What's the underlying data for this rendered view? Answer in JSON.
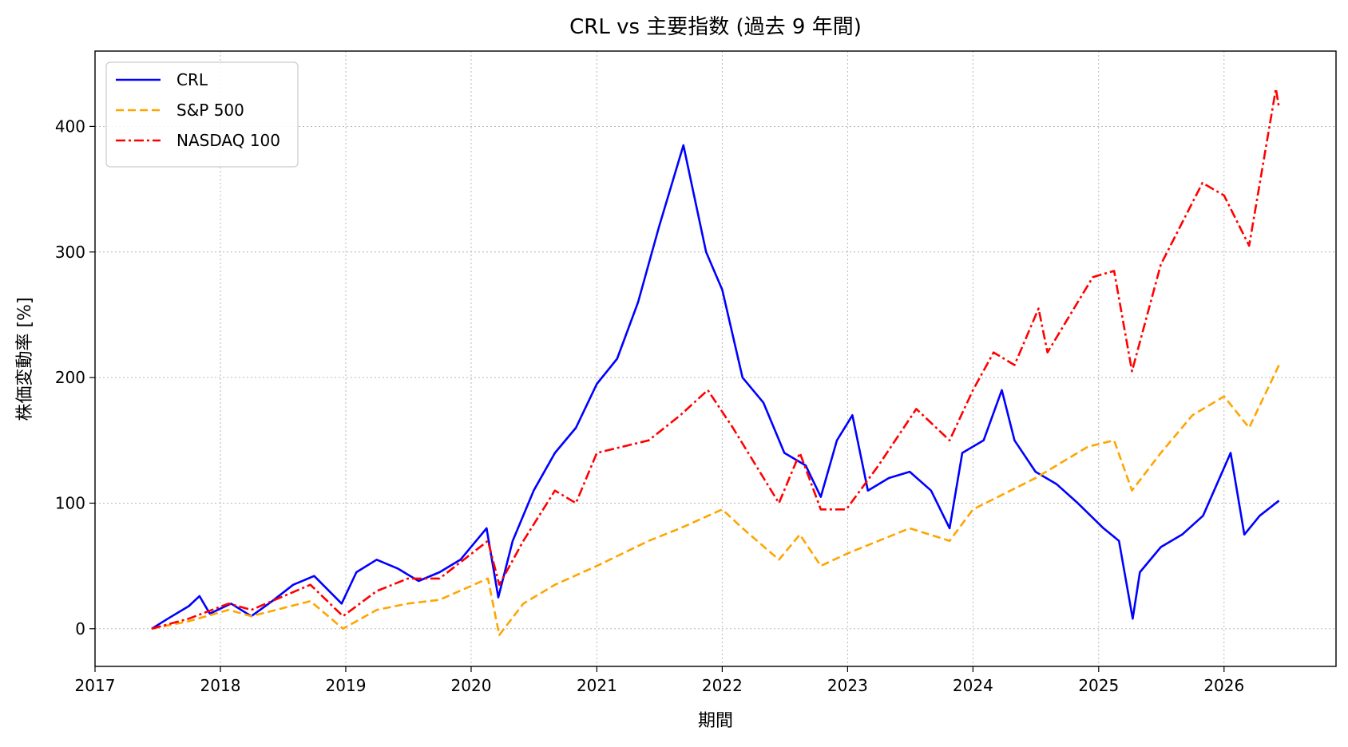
{
  "chart_data": {
    "type": "line",
    "title": "CRL vs 主要指数 (過去 9 年間)",
    "xlabel": "期間",
    "ylabel": "株価変動率 [%]",
    "xlim": [
      "2017-01-01",
      "2026-11-23"
    ],
    "ylim": [
      -30,
      460
    ],
    "xticks": [
      "2017",
      "2018",
      "2019",
      "2020",
      "2021",
      "2022",
      "2023",
      "2024",
      "2025",
      "2026"
    ],
    "yticks": [
      0,
      100,
      200,
      300,
      400
    ],
    "grid": true,
    "legend_position": "top-left",
    "series": [
      {
        "name": "CRL",
        "color": "#0000ff",
        "dash": "solid",
        "points": [
          [
            "2017-06-15",
            0
          ],
          [
            "2017-08-01",
            8
          ],
          [
            "2017-10-01",
            18
          ],
          [
            "2017-11-01",
            26
          ],
          [
            "2017-12-01",
            12
          ],
          [
            "2018-02-01",
            20
          ],
          [
            "2018-04-01",
            10
          ],
          [
            "2018-06-01",
            22
          ],
          [
            "2018-08-01",
            35
          ],
          [
            "2018-10-01",
            42
          ],
          [
            "2018-12-20",
            20
          ],
          [
            "2019-02-01",
            45
          ],
          [
            "2019-04-01",
            55
          ],
          [
            "2019-06-01",
            48
          ],
          [
            "2019-08-01",
            38
          ],
          [
            "2019-10-01",
            45
          ],
          [
            "2019-12-01",
            55
          ],
          [
            "2020-02-15",
            80
          ],
          [
            "2020-03-20",
            25
          ],
          [
            "2020-05-01",
            70
          ],
          [
            "2020-07-01",
            110
          ],
          [
            "2020-09-01",
            140
          ],
          [
            "2020-11-01",
            160
          ],
          [
            "2021-01-01",
            195
          ],
          [
            "2021-03-01",
            215
          ],
          [
            "2021-05-01",
            260
          ],
          [
            "2021-07-01",
            320
          ],
          [
            "2021-09-10",
            385
          ],
          [
            "2021-10-15",
            340
          ],
          [
            "2021-11-15",
            300
          ],
          [
            "2022-01-01",
            270
          ],
          [
            "2022-03-01",
            200
          ],
          [
            "2022-05-01",
            180
          ],
          [
            "2022-07-01",
            140
          ],
          [
            "2022-09-01",
            130
          ],
          [
            "2022-10-15",
            105
          ],
          [
            "2022-12-01",
            150
          ],
          [
            "2023-01-15",
            170
          ],
          [
            "2023-03-01",
            110
          ],
          [
            "2023-05-01",
            120
          ],
          [
            "2023-07-01",
            125
          ],
          [
            "2023-09-01",
            110
          ],
          [
            "2023-10-25",
            80
          ],
          [
            "2023-12-01",
            140
          ],
          [
            "2024-02-01",
            150
          ],
          [
            "2024-03-25",
            190
          ],
          [
            "2024-05-01",
            150
          ],
          [
            "2024-07-01",
            125
          ],
          [
            "2024-09-01",
            115
          ],
          [
            "2024-11-01",
            100
          ],
          [
            "2025-01-15",
            80
          ],
          [
            "2025-03-01",
            70
          ],
          [
            "2025-04-10",
            8
          ],
          [
            "2025-05-01",
            45
          ],
          [
            "2025-07-01",
            65
          ],
          [
            "2025-09-01",
            75
          ],
          [
            "2025-11-01",
            90
          ],
          [
            "2026-01-20",
            140
          ],
          [
            "2026-03-01",
            75
          ],
          [
            "2026-04-15",
            90
          ],
          [
            "2026-06-10",
            102
          ]
        ]
      },
      {
        "name": "S&P 500",
        "color": "#ffa500",
        "dash": "dashed",
        "points": [
          [
            "2017-06-15",
            0
          ],
          [
            "2017-10-01",
            6
          ],
          [
            "2018-01-25",
            15
          ],
          [
            "2018-04-01",
            10
          ],
          [
            "2018-09-20",
            22
          ],
          [
            "2018-12-24",
            0
          ],
          [
            "2019-04-01",
            15
          ],
          [
            "2019-07-01",
            20
          ],
          [
            "2019-10-01",
            23
          ],
          [
            "2020-02-19",
            40
          ],
          [
            "2020-03-23",
            -5
          ],
          [
            "2020-06-01",
            20
          ],
          [
            "2020-09-01",
            35
          ],
          [
            "2021-01-01",
            50
          ],
          [
            "2021-06-01",
            70
          ],
          [
            "2021-09-01",
            80
          ],
          [
            "2022-01-01",
            95
          ],
          [
            "2022-03-01",
            80
          ],
          [
            "2022-06-15",
            55
          ],
          [
            "2022-08-15",
            75
          ],
          [
            "2022-10-15",
            50
          ],
          [
            "2023-01-01",
            60
          ],
          [
            "2023-07-01",
            80
          ],
          [
            "2023-10-25",
            70
          ],
          [
            "2024-01-01",
            95
          ],
          [
            "2024-07-01",
            120
          ],
          [
            "2024-12-01",
            145
          ],
          [
            "2025-02-15",
            150
          ],
          [
            "2025-04-08",
            110
          ],
          [
            "2025-07-01",
            140
          ],
          [
            "2025-10-01",
            170
          ],
          [
            "2026-01-01",
            185
          ],
          [
            "2026-03-15",
            160
          ],
          [
            "2026-06-10",
            210
          ]
        ]
      },
      {
        "name": "NASDAQ 100",
        "color": "#ff0000",
        "dash": "dashdot",
        "points": [
          [
            "2017-06-15",
            0
          ],
          [
            "2017-10-01",
            8
          ],
          [
            "2018-01-25",
            20
          ],
          [
            "2018-04-01",
            15
          ],
          [
            "2018-09-20",
            35
          ],
          [
            "2018-12-24",
            10
          ],
          [
            "2019-04-01",
            30
          ],
          [
            "2019-07-01",
            40
          ],
          [
            "2019-10-01",
            40
          ],
          [
            "2020-02-19",
            70
          ],
          [
            "2020-03-23",
            35
          ],
          [
            "2020-06-01",
            70
          ],
          [
            "2020-09-01",
            110
          ],
          [
            "2020-11-01",
            100
          ],
          [
            "2021-01-01",
            140
          ],
          [
            "2021-06-01",
            150
          ],
          [
            "2021-09-01",
            170
          ],
          [
            "2021-11-20",
            190
          ],
          [
            "2022-02-01",
            160
          ],
          [
            "2022-06-15",
            100
          ],
          [
            "2022-08-15",
            140
          ],
          [
            "2022-10-15",
            95
          ],
          [
            "2022-12-28",
            95
          ],
          [
            "2023-04-01",
            130
          ],
          [
            "2023-07-20",
            175
          ],
          [
            "2023-10-25",
            150
          ],
          [
            "2024-01-01",
            190
          ],
          [
            "2024-03-01",
            220
          ],
          [
            "2024-05-01",
            210
          ],
          [
            "2024-07-10",
            255
          ],
          [
            "2024-08-05",
            220
          ],
          [
            "2024-12-15",
            280
          ],
          [
            "2025-02-15",
            285
          ],
          [
            "2025-04-08",
            205
          ],
          [
            "2025-07-01",
            290
          ],
          [
            "2025-10-30",
            355
          ],
          [
            "2026-01-01",
            345
          ],
          [
            "2026-03-15",
            305
          ],
          [
            "2026-06-01",
            430
          ],
          [
            "2026-06-10",
            415
          ]
        ]
      }
    ]
  }
}
